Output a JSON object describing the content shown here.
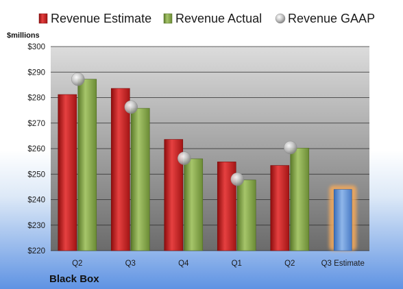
{
  "chart_data": {
    "type": "bar",
    "unit_label": "$millions",
    "company": "Black Box",
    "categories": [
      "Q2",
      "Q3",
      "Q4",
      "Q1",
      "Q2",
      "Q3 Estimate"
    ],
    "ylim": [
      220,
      300
    ],
    "yticks": [
      "$220",
      "$230",
      "$240",
      "$250",
      "$260",
      "$270",
      "$280",
      "$290",
      "$300"
    ],
    "grid": true,
    "legend_position": "top",
    "series": [
      {
        "name": "Revenue Estimate",
        "kind": "bar",
        "color": "#d42a2a",
        "values": [
          281.2,
          283.6,
          263.6,
          254.8,
          253.4,
          null
        ]
      },
      {
        "name": "Revenue Actual",
        "kind": "bar",
        "color": "#84a84a",
        "values": [
          287.2,
          275.8,
          256.0,
          247.7,
          260.2,
          null
        ]
      },
      {
        "name": "Revenue GAAP",
        "kind": "marker",
        "color": "#b8b8b8",
        "values": [
          287.2,
          276.3,
          256.2,
          248.0,
          260.4,
          null
        ]
      }
    ],
    "estimate": {
      "category": "Q3 Estimate",
      "value": 244.0,
      "color": "#6a9ad8",
      "glow": "#f3a95c"
    }
  }
}
